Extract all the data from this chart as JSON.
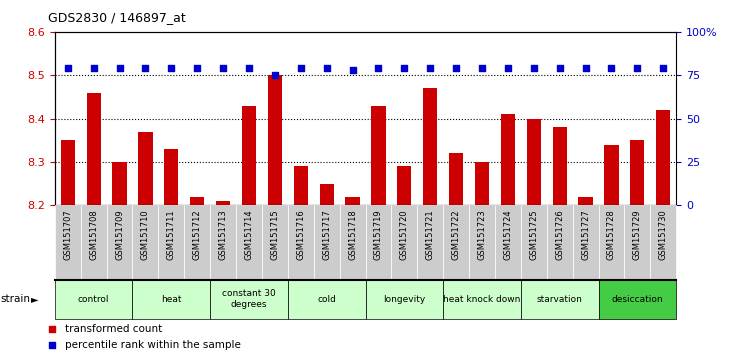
{
  "title": "GDS2830 / 146897_at",
  "samples": [
    "GSM151707",
    "GSM151708",
    "GSM151709",
    "GSM151710",
    "GSM151711",
    "GSM151712",
    "GSM151713",
    "GSM151714",
    "GSM151715",
    "GSM151716",
    "GSM151717",
    "GSM151718",
    "GSM151719",
    "GSM151720",
    "GSM151721",
    "GSM151722",
    "GSM151723",
    "GSM151724",
    "GSM151725",
    "GSM151726",
    "GSM151727",
    "GSM151728",
    "GSM151729",
    "GSM151730"
  ],
  "bar_values": [
    8.35,
    8.46,
    8.3,
    8.37,
    8.33,
    8.22,
    8.21,
    8.43,
    8.5,
    8.29,
    8.25,
    8.22,
    8.43,
    8.29,
    8.47,
    8.32,
    8.3,
    8.41,
    8.4,
    8.38,
    8.22,
    8.34,
    8.35,
    8.42
  ],
  "percentile_values": [
    79,
    79,
    79,
    79,
    79,
    79,
    79,
    79,
    75,
    79,
    79,
    78,
    79,
    79,
    79,
    79,
    79,
    79,
    79,
    79,
    79,
    79,
    79,
    79
  ],
  "bar_color": "#cc0000",
  "dot_color": "#0000cc",
  "ylim_left": [
    8.2,
    8.6
  ],
  "ylim_right": [
    0,
    100
  ],
  "yright_ticks": [
    0,
    25,
    50,
    75,
    100
  ],
  "yright_labels": [
    "0",
    "25",
    "50",
    "75",
    "100%"
  ],
  "yleft_ticks": [
    8.2,
    8.3,
    8.4,
    8.5,
    8.6
  ],
  "yleft_labels": [
    "8.2",
    "8.3",
    "8.4",
    "8.5",
    "8.6"
  ],
  "hgrid_lines": [
    8.3,
    8.4,
    8.5
  ],
  "groups": [
    {
      "label": "control",
      "start": 0,
      "end": 2,
      "color": "#ccffcc"
    },
    {
      "label": "heat",
      "start": 3,
      "end": 5,
      "color": "#ccffcc"
    },
    {
      "label": "constant 30\ndegrees",
      "start": 6,
      "end": 8,
      "color": "#ccffcc"
    },
    {
      "label": "cold",
      "start": 9,
      "end": 11,
      "color": "#ccffcc"
    },
    {
      "label": "longevity",
      "start": 12,
      "end": 14,
      "color": "#ccffcc"
    },
    {
      "label": "heat knock down",
      "start": 15,
      "end": 17,
      "color": "#ccffcc"
    },
    {
      "label": "starvation",
      "start": 18,
      "end": 20,
      "color": "#ccffcc"
    },
    {
      "label": "desiccation",
      "start": 21,
      "end": 23,
      "color": "#44cc44"
    }
  ],
  "legend_items": [
    {
      "label": "transformed count",
      "color": "#cc0000"
    },
    {
      "label": "percentile rank within the sample",
      "color": "#0000cc"
    }
  ],
  "bar_width": 0.55,
  "sample_label_bg": "#cccccc",
  "background_color": "#ffffff",
  "strain_label": "strain",
  "strain_arrow": "►"
}
